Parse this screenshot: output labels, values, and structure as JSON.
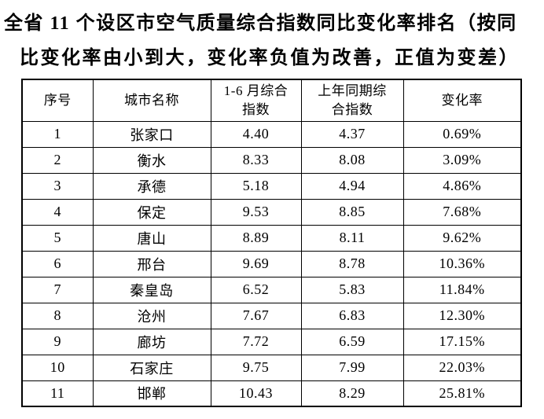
{
  "title": {
    "line1": "全省 11 个设区市空气质量综合指数同比变化率排名（按同",
    "line2": "比变化率由小到大，变化率负值为改善，正值为变差）"
  },
  "table": {
    "headers": {
      "rank": "序号",
      "city": "城市名称",
      "index_jan_jun": "1-6 月综合\n指数",
      "index_prev_year": "上年同期综\n合指数",
      "change_rate": "变化率"
    },
    "rows": [
      {
        "rank": "1",
        "city": "张家口",
        "index_jan_jun": "4.40",
        "index_prev_year": "4.37",
        "change_rate": "0.69%"
      },
      {
        "rank": "2",
        "city": "衡水",
        "index_jan_jun": "8.33",
        "index_prev_year": "8.08",
        "change_rate": "3.09%"
      },
      {
        "rank": "3",
        "city": "承德",
        "index_jan_jun": "5.18",
        "index_prev_year": "4.94",
        "change_rate": "4.86%"
      },
      {
        "rank": "4",
        "city": "保定",
        "index_jan_jun": "9.53",
        "index_prev_year": "8.85",
        "change_rate": "7.68%"
      },
      {
        "rank": "5",
        "city": "唐山",
        "index_jan_jun": "8.89",
        "index_prev_year": "8.11",
        "change_rate": "9.62%"
      },
      {
        "rank": "6",
        "city": "邢台",
        "index_jan_jun": "9.69",
        "index_prev_year": "8.78",
        "change_rate": "10.36%"
      },
      {
        "rank": "7",
        "city": "秦皇岛",
        "index_jan_jun": "6.52",
        "index_prev_year": "5.83",
        "change_rate": "11.84%"
      },
      {
        "rank": "8",
        "city": "沧州",
        "index_jan_jun": "7.67",
        "index_prev_year": "6.83",
        "change_rate": "12.30%"
      },
      {
        "rank": "9",
        "city": "廊坊",
        "index_jan_jun": "7.72",
        "index_prev_year": "6.59",
        "change_rate": "17.15%"
      },
      {
        "rank": "10",
        "city": "石家庄",
        "index_jan_jun": "9.75",
        "index_prev_year": "7.99",
        "change_rate": "22.03%"
      },
      {
        "rank": "11",
        "city": "邯郸",
        "index_jan_jun": "10.43",
        "index_prev_year": "8.29",
        "change_rate": "25.81%"
      }
    ]
  },
  "colors": {
    "text": "#000000",
    "border": "#000000",
    "background": "#ffffff"
  }
}
